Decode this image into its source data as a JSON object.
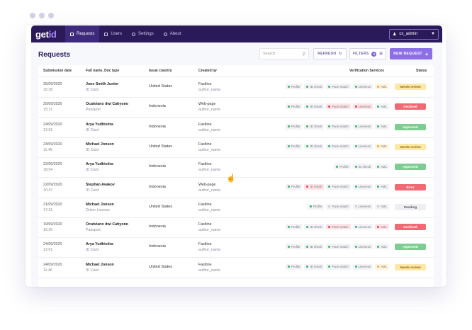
{
  "app": {
    "logo_main": "get",
    "logo_accent": "id"
  },
  "nav": [
    {
      "label": "Requests",
      "icon": "grid-icon",
      "active": true
    },
    {
      "label": "Users",
      "icon": "list-icon",
      "active": false
    },
    {
      "label": "Settings",
      "icon": "gear-icon",
      "active": false
    },
    {
      "label": "About",
      "icon": "info-icon",
      "active": false
    }
  ],
  "user": {
    "name": "cs_admin"
  },
  "page": {
    "title": "Requests"
  },
  "toolbar": {
    "search_placeholder": "Search",
    "refresh_label": "REFRESH",
    "filters_label": "FILTERS",
    "filters_count": "3",
    "new_request_label": "NEW REQUEST"
  },
  "table": {
    "headers": {
      "date": "Submission date",
      "name": "Full name, Doc type",
      "country": "Issue country",
      "created": "Created by",
      "verification": "Verification Services",
      "status": "Status"
    },
    "rows": [
      {
        "date": "25/09/2020",
        "time": "16:38",
        "name": "Jone Smith Junior",
        "doc": "ID Card",
        "country": "United States",
        "created": "Fastline",
        "author": "author_name",
        "status": "Needs review",
        "status_type": "review",
        "checks": [
          {
            "l": "Profile",
            "s": "ok"
          },
          {
            "l": "ID check",
            "s": "ok"
          },
          {
            "l": "Face-match",
            "s": "ok"
          },
          {
            "l": "Liveness",
            "s": "ok"
          },
          {
            "l": "AML",
            "s": "warn"
          }
        ]
      },
      {
        "date": "25/09/2020",
        "time": "15:21",
        "name": "Ocatviano dwi Cahyono",
        "doc": "Passport",
        "country": "Indonesia",
        "created": "Web-page",
        "author": "author_name",
        "status": "Declined",
        "status_type": "declined",
        "checks": [
          {
            "l": "Profile",
            "s": "ok"
          },
          {
            "l": "ID check",
            "s": "ok"
          },
          {
            "l": "Face-match",
            "s": "fail"
          },
          {
            "l": "Liveness",
            "s": "fail"
          },
          {
            "l": "AML",
            "s": "ok"
          }
        ]
      },
      {
        "date": "24/09/2020",
        "time": "12:01",
        "name": "Arya Yudhistira",
        "doc": "ID Card",
        "country": "Indonesia",
        "created": "Fastline",
        "author": "author_name",
        "status": "Approved",
        "status_type": "approved",
        "checks": [
          {
            "l": "Profile",
            "s": "ok"
          },
          {
            "l": "ID check",
            "s": "ok"
          },
          {
            "l": "Face-match",
            "s": "ok"
          },
          {
            "l": "Liveness",
            "s": "ok"
          },
          {
            "l": "AML",
            "s": "ok"
          }
        ]
      },
      {
        "date": "24/09/2020",
        "time": "11:46",
        "name": "Michael Jonson",
        "doc": "ID Card",
        "country": "United States",
        "created": "Fastline",
        "author": "author_name",
        "status": "Needs review",
        "status_type": "review",
        "checks": [
          {
            "l": "Profile",
            "s": "ok"
          },
          {
            "l": "ID check",
            "s": "ok"
          },
          {
            "l": "Face-match",
            "s": "ok"
          },
          {
            "l": "Liveness",
            "s": "ok"
          },
          {
            "l": "AML",
            "s": "warn"
          }
        ]
      },
      {
        "date": "22/09/2020",
        "time": "18:54",
        "name": "Arya Yudhistira",
        "doc": "ID Card",
        "country": "Indonesia",
        "created": "Fastline",
        "author": "author_name",
        "status": "Approved",
        "status_type": "approved",
        "checks": [
          {
            "l": "Profile",
            "s": "ok"
          },
          {
            "l": "ID check",
            "s": "ok"
          },
          {
            "l": "AML",
            "s": "ok"
          }
        ]
      },
      {
        "date": "22/09/2020",
        "time": "10:47",
        "name": "Stephan Avakov",
        "doc": "ID Card",
        "country": "Indonesia",
        "created": "Web-page",
        "author": "author_name",
        "status": "Error",
        "status_type": "error",
        "checks": [
          {
            "l": "Profile",
            "s": "ok"
          },
          {
            "l": "ID check",
            "s": "fail"
          },
          {
            "l": "Face-match",
            "s": "ok"
          },
          {
            "l": "Liveness",
            "s": "ok"
          },
          {
            "l": "AML",
            "s": "ok"
          }
        ]
      },
      {
        "date": "21/09/2020",
        "time": "17:31",
        "name": "Michael Jonson",
        "doc": "Driver License",
        "country": "United States",
        "created": "Fastline",
        "author": "author_name",
        "status": "Pending",
        "status_type": "pending",
        "checks": [
          {
            "l": "Profile",
            "s": "ok"
          },
          {
            "l": "Face-match",
            "s": "pend"
          },
          {
            "l": "Liveness",
            "s": "pend"
          },
          {
            "l": "AML",
            "s": "pend"
          }
        ]
      },
      {
        "date": "19/09/2020",
        "time": "15:20",
        "name": "Ocatviano dwi Cahyono",
        "doc": "Passport",
        "country": "Indonesia",
        "created": "Fastline",
        "author": "author_name",
        "status": "Declined",
        "status_type": "declined",
        "checks": [
          {
            "l": "Profile",
            "s": "ok"
          },
          {
            "l": "ID check",
            "s": "ok"
          },
          {
            "l": "Face-match",
            "s": "fail"
          },
          {
            "l": "Liveness",
            "s": "ok"
          },
          {
            "l": "AML",
            "s": "fail"
          }
        ]
      },
      {
        "date": "24/09/2020",
        "time": "12:01",
        "name": "Arya Yudhistira",
        "doc": "ID Card",
        "country": "Indonesia",
        "created": "Fastline",
        "author": "author_name",
        "status": "Approved",
        "status_type": "approved",
        "checks": [
          {
            "l": "Profile",
            "s": "ok"
          },
          {
            "l": "ID check",
            "s": "ok"
          },
          {
            "l": "Face-match",
            "s": "ok"
          },
          {
            "l": "Liveness",
            "s": "ok"
          },
          {
            "l": "AML",
            "s": "ok"
          }
        ]
      },
      {
        "date": "24/09/2020",
        "time": "11:46",
        "name": "Michael Jonson",
        "doc": "ID Card",
        "country": "United States",
        "created": "Fastline",
        "author": "author_name",
        "status": "Needs review",
        "status_type": "review",
        "checks": [
          {
            "l": "Profile",
            "s": "ok"
          },
          {
            "l": "ID check",
            "s": "ok"
          },
          {
            "l": "Face-match",
            "s": "ok"
          },
          {
            "l": "Liveness",
            "s": "ok"
          },
          {
            "l": "AML",
            "s": "warn"
          }
        ]
      }
    ]
  }
}
